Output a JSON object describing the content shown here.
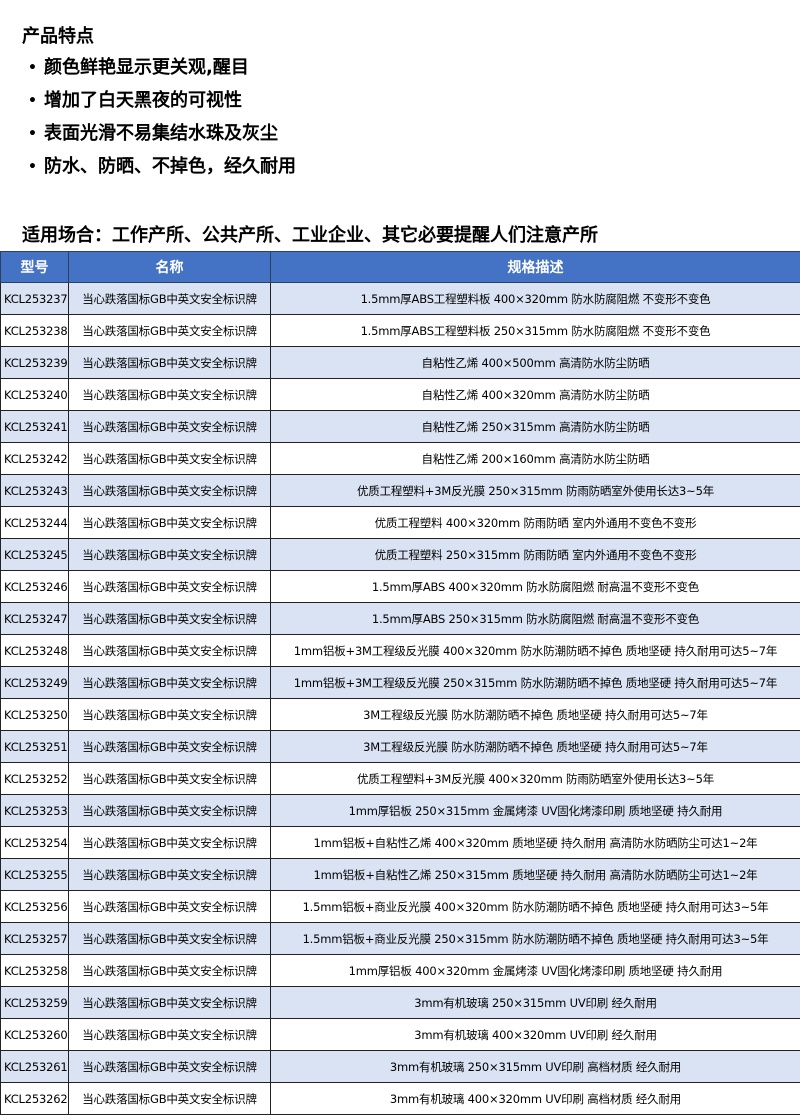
{
  "title": "产品特点",
  "features": [
    "颜色鲜艳显示更关观,醒目",
    "增加了白天黑夜的可视性",
    "表面光滑不易集结水珠及灰尘",
    "防水、防晒、不掉色，经久耐用"
  ],
  "scenes": "适用场合：工作产所、公共产所、工业企业、其它必要提醒人们注意产所",
  "colors": {
    "header": "#4472c4",
    "row_alt": "#dae3f3"
  },
  "table": {
    "headers": [
      "型号",
      "名称",
      "规格描述"
    ],
    "rows": [
      [
        "KCL253237",
        "当心跌落国标GB中英文安全标识牌",
        "1.5mm厚ABS工程塑料板 400×320mm 防水防腐阻燃 不变形不变色"
      ],
      [
        "KCL253238",
        "当心跌落国标GB中英文安全标识牌",
        "1.5mm厚ABS工程塑料板 250×315mm 防水防腐阻燃 不变形不变色"
      ],
      [
        "KCL253239",
        "当心跌落国标GB中英文安全标识牌",
        "自粘性乙烯 400×500mm 高清防水防尘防晒"
      ],
      [
        "KCL253240",
        "当心跌落国标GB中英文安全标识牌",
        "自粘性乙烯 400×320mm 高清防水防尘防晒"
      ],
      [
        "KCL253241",
        "当心跌落国标GB中英文安全标识牌",
        "自粘性乙烯 250×315mm 高清防水防尘防晒"
      ],
      [
        "KCL253242",
        "当心跌落国标GB中英文安全标识牌",
        "自粘性乙烯 200×160mm 高清防水防尘防晒"
      ],
      [
        "KCL253243",
        "当心跌落国标GB中英文安全标识牌",
        "优质工程塑料+3M反光膜 250×315mm 防雨防晒室外使用长达3~5年"
      ],
      [
        "KCL253244",
        "当心跌落国标GB中英文安全标识牌",
        "优质工程塑料 400×320mm 防雨防晒 室内外通用不变色不变形"
      ],
      [
        "KCL253245",
        "当心跌落国标GB中英文安全标识牌",
        "优质工程塑料 250×315mm 防雨防晒 室内外通用不变色不变形"
      ],
      [
        "KCL253246",
        "当心跌落国标GB中英文安全标识牌",
        "1.5mm厚ABS 400×320mm 防水防腐阻燃 耐高温不变形不变色"
      ],
      [
        "KCL253247",
        "当心跌落国标GB中英文安全标识牌",
        "1.5mm厚ABS 250×315mm 防水防腐阻燃 耐高温不变形不变色"
      ],
      [
        "KCL253248",
        "当心跌落国标GB中英文安全标识牌",
        "1mm铝板+3M工程级反光膜 400×320mm 防水防潮防晒不掉色 质地坚硬 持久耐用可达5~7年"
      ],
      [
        "KCL253249",
        "当心跌落国标GB中英文安全标识牌",
        "1mm铝板+3M工程级反光膜 250×315mm 防水防潮防晒不掉色 质地坚硬 持久耐用可达5~7年"
      ],
      [
        "KCL253250",
        "当心跌落国标GB中英文安全标识牌",
        "3M工程级反光膜 防水防潮防晒不掉色 质地坚硬 持久耐用可达5~7年"
      ],
      [
        "KCL253251",
        "当心跌落国标GB中英文安全标识牌",
        "3M工程级反光膜 防水防潮防晒不掉色 质地坚硬 持久耐用可达5~7年"
      ],
      [
        "KCL253252",
        "当心跌落国标GB中英文安全标识牌",
        "优质工程塑料+3M反光膜 400×320mm 防雨防晒室外使用长达3~5年"
      ],
      [
        "KCL253253",
        "当心跌落国标GB中英文安全标识牌",
        "1mm厚铝板 250×315mm 金属烤漆 UV固化烤漆印刷 质地坚硬 持久耐用"
      ],
      [
        "KCL253254",
        "当心跌落国标GB中英文安全标识牌",
        "1mm铝板+自粘性乙烯 400×320mm 质地坚硬 持久耐用 高清防水防晒防尘可达1~2年"
      ],
      [
        "KCL253255",
        "当心跌落国标GB中英文安全标识牌",
        "1mm铝板+自粘性乙烯 250×315mm 质地坚硬 持久耐用 高清防水防晒防尘可达1~2年"
      ],
      [
        "KCL253256",
        "当心跌落国标GB中英文安全标识牌",
        "1.5mm铝板+商业反光膜 400×320mm 防水防潮防晒不掉色 质地坚硬 持久耐用可达3~5年"
      ],
      [
        "KCL253257",
        "当心跌落国标GB中英文安全标识牌",
        "1.5mm铝板+商业反光膜 250×315mm 防水防潮防晒不掉色 质地坚硬 持久耐用可达3~5年"
      ],
      [
        "KCL253258",
        "当心跌落国标GB中英文安全标识牌",
        "1mm厚铝板 400×320mm 金属烤漆 UV固化烤漆印刷 质地坚硬 持久耐用"
      ],
      [
        "KCL253259",
        "当心跌落国标GB中英文安全标识牌",
        "3mm有机玻璃 250×315mm UV印刷 经久耐用"
      ],
      [
        "KCL253260",
        "当心跌落国标GB中英文安全标识牌",
        "3mm有机玻璃 400×320mm UV印刷 经久耐用"
      ],
      [
        "KCL253261",
        "当心跌落国标GB中英文安全标识牌",
        "3mm有机玻璃 250×315mm UV印刷 高档材质 经久耐用"
      ],
      [
        "KCL253262",
        "当心跌落国标GB中英文安全标识牌",
        "3mm有机玻璃 400×320mm UV印刷 高档材质 经久耐用"
      ]
    ]
  }
}
